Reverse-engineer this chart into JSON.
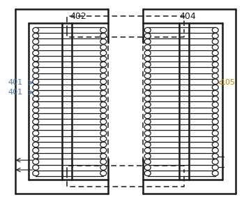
{
  "bg_color": "#ffffff",
  "line_color": "#1a1a1a",
  "dashed_color": "#1a1a1a",
  "label_401_color": "#4a7ab5",
  "label_105_color": "#b8860b",
  "label_402_color": "#1a1a1a",
  "label_404_color": "#1a1a1a",
  "figsize": [
    3.6,
    2.89
  ],
  "dpi": 100,
  "n_turns": 26
}
